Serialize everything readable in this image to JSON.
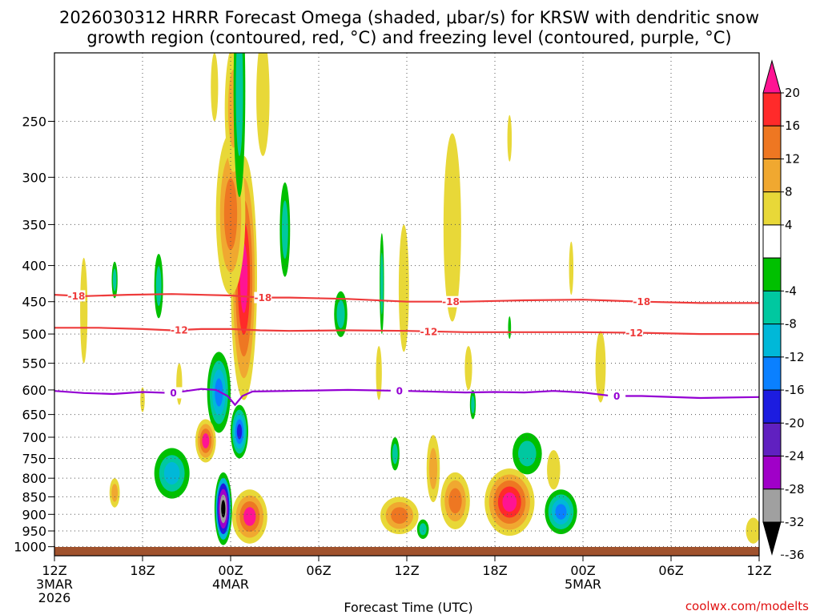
{
  "chart_data": {
    "type": "contour",
    "title_line1": "2026030312 HRRR Forecast Omega (shaded, μbar/s) for KRSW with dendritic snow",
    "title_line2": "growth region (contoured, red, °C) and freezing level (contoured, purple, °C)",
    "xlabel": "Forecast Time (UTC)",
    "credit": "coolwx.com/modelts",
    "x_range_hours": [
      0,
      48
    ],
    "x_ticks": [
      {
        "hour": 0,
        "lines": [
          "12Z",
          "3MAR",
          "2026"
        ]
      },
      {
        "hour": 6,
        "lines": [
          "18Z"
        ]
      },
      {
        "hour": 12,
        "lines": [
          "00Z",
          "4MAR"
        ]
      },
      {
        "hour": 18,
        "lines": [
          "06Z"
        ]
      },
      {
        "hour": 24,
        "lines": [
          "12Z"
        ]
      },
      {
        "hour": 30,
        "lines": [
          "18Z"
        ]
      },
      {
        "hour": 36,
        "lines": [
          "00Z",
          "5MAR"
        ]
      },
      {
        "hour": 42,
        "lines": [
          "06Z"
        ]
      },
      {
        "hour": 48,
        "lines": [
          "12Z"
        ]
      }
    ],
    "y_range_hPa": [
      1030,
      200
    ],
    "y_ticks": [
      "250",
      "300",
      "350",
      "400",
      "450",
      "500",
      "550",
      "600",
      "650",
      "700",
      "750",
      "800",
      "850",
      "900",
      "950",
      "1000"
    ],
    "colorbar": {
      "labels": [
        "20",
        "16",
        "12",
        "8",
        "4",
        "-4",
        "-8",
        "-12",
        "-16",
        "-20",
        "-24",
        "-28",
        "-32",
        "-36"
      ],
      "colors": [
        "#ff1493",
        "#ff2a2a",
        "#ee7722",
        "#f0a830",
        "#e8d838",
        "#ffffff",
        "#00c000",
        "#00c8a0",
        "#00b8d8",
        "#0a80ff",
        "#1c1ce0",
        "#6020c0",
        "#a000c8",
        "#a0a0a0",
        "#000000"
      ]
    },
    "isotherm_dgz_cold": {
      "label": "-18",
      "points": [
        [
          0,
          440
        ],
        [
          2,
          442
        ],
        [
          5,
          440
        ],
        [
          8,
          439
        ],
        [
          12,
          441
        ],
        [
          14,
          444
        ],
        [
          16,
          444
        ],
        [
          20,
          446
        ],
        [
          24,
          450
        ],
        [
          28,
          450
        ],
        [
          32,
          448
        ],
        [
          36,
          447
        ],
        [
          40,
          450
        ],
        [
          44,
          452
        ],
        [
          48,
          452
        ]
      ],
      "label_hours": [
        1.5,
        14.2,
        27,
        40
      ]
    },
    "isotherm_dgz_warm": {
      "label": "-12",
      "points": [
        [
          0,
          490
        ],
        [
          3,
          490
        ],
        [
          6,
          492
        ],
        [
          8,
          494
        ],
        [
          10,
          492
        ],
        [
          12,
          492
        ],
        [
          14,
          494
        ],
        [
          16,
          495
        ],
        [
          20,
          494
        ],
        [
          24,
          495
        ],
        [
          28,
          497
        ],
        [
          32,
          497
        ],
        [
          36,
          497
        ],
        [
          40,
          498
        ],
        [
          44,
          500
        ],
        [
          48,
          500
        ]
      ],
      "label_hours": [
        8.5,
        25.5,
        39.5
      ]
    },
    "isotherm_freezing": {
      "label": "0",
      "points": [
        [
          0,
          602
        ],
        [
          2,
          606
        ],
        [
          4,
          608
        ],
        [
          6,
          604
        ],
        [
          8,
          606
        ],
        [
          10,
          598
        ],
        [
          11,
          600
        ],
        [
          11.8,
          612
        ],
        [
          12.3,
          630
        ],
        [
          12.8,
          612
        ],
        [
          13.5,
          603
        ],
        [
          16,
          602
        ],
        [
          20,
          600
        ],
        [
          24,
          602
        ],
        [
          28,
          605
        ],
        [
          30,
          604
        ],
        [
          32,
          605
        ],
        [
          34,
          602
        ],
        [
          36,
          605
        ],
        [
          38,
          612
        ],
        [
          40,
          612
        ],
        [
          44,
          616
        ],
        [
          48,
          614
        ]
      ],
      "label_hours": [
        8.1,
        23.5,
        38.3
      ]
    },
    "omega_cells": [
      {
        "name": "omega-strong-rising-core",
        "t": 11.5,
        "p": 890,
        "rt": 0.6,
        "rp": 105,
        "values": [
          -4,
          -12,
          -20,
          -28,
          -32,
          -36
        ]
      },
      {
        "name": "omega-sinking-column",
        "t": 12.9,
        "p": 450,
        "rt": 0.9,
        "rp": 170,
        "values": [
          4,
          8,
          12,
          16,
          20
        ]
      },
      {
        "name": "omega-sinking-upper",
        "t": 12.0,
        "p": 350,
        "rt": 1.0,
        "rp": 90,
        "values": [
          4,
          8,
          12
        ]
      },
      {
        "name": "omega-sinking-upper-top",
        "t": 12.2,
        "p": 245,
        "rt": 0.6,
        "rp": 50,
        "values": [
          4,
          8
        ]
      },
      {
        "name": "omega-rising-mid-blue",
        "t": 12.6,
        "p": 690,
        "rt": 0.6,
        "rp": 60,
        "values": [
          -4,
          -8,
          -12,
          -16,
          -20
        ]
      },
      {
        "name": "omega-rising-midlevel",
        "t": 11.2,
        "p": 610,
        "rt": 0.8,
        "rp": 80,
        "values": [
          -4,
          -8,
          -12,
          -16
        ]
      },
      {
        "name": "omega-sinking-low-right",
        "t": 13.3,
        "p": 910,
        "rt": 1.2,
        "rp": 80,
        "values": [
          4,
          8,
          12,
          20
        ]
      },
      {
        "name": "omega-sinking-midlow",
        "t": 10.3,
        "p": 710,
        "rt": 0.7,
        "rp": 50,
        "values": [
          4,
          8,
          12,
          20
        ]
      },
      {
        "name": "omega-rising-left",
        "t": 8.0,
        "p": 790,
        "rt": 1.2,
        "rp": 65,
        "values": [
          -4,
          -8,
          -12
        ]
      },
      {
        "name": "omega-rising-upper-strip",
        "t": 12.6,
        "p": 240,
        "rt": 0.4,
        "rp": 80,
        "values": [
          -4,
          -8
        ]
      },
      {
        "name": "omega-rising-upper-right",
        "t": 15.7,
        "p": 360,
        "rt": 0.35,
        "rp": 55,
        "values": [
          -4,
          -8
        ]
      },
      {
        "name": "omega-rising-left-mid",
        "t": 7.1,
        "p": 430,
        "rt": 0.3,
        "rp": 45,
        "values": [
          -4,
          -8
        ]
      },
      {
        "name": "omega-rising-far-left",
        "t": 4.1,
        "p": 420,
        "rt": 0.2,
        "rp": 25,
        "values": [
          -4,
          -8
        ]
      },
      {
        "name": "omega-rising-mid-small",
        "t": 19.5,
        "p": 470,
        "rt": 0.45,
        "rp": 35,
        "values": [
          -4,
          -8
        ]
      },
      {
        "name": "omega-sinking-left-col",
        "t": 2.0,
        "p": 470,
        "rt": 0.25,
        "rp": 80,
        "values": [
          4
        ]
      },
      {
        "name": "omega-sinking-left-low",
        "t": 4.1,
        "p": 840,
        "rt": 0.35,
        "rp": 40,
        "values": [
          4,
          8
        ]
      },
      {
        "name": "omega-sinking-small-1",
        "t": 8.5,
        "p": 590,
        "rt": 0.2,
        "rp": 40,
        "values": [
          4
        ]
      },
      {
        "name": "omega-sinking-small-2",
        "t": 6.0,
        "p": 620,
        "rt": 0.15,
        "rp": 25,
        "values": [
          4
        ]
      },
      {
        "name": "omega-sinking-top-a",
        "t": 10.9,
        "p": 225,
        "rt": 0.25,
        "rp": 25,
        "values": [
          4
        ]
      },
      {
        "name": "omega-sinking-top-b",
        "t": 14.2,
        "p": 235,
        "rt": 0.45,
        "rp": 45,
        "values": [
          4
        ]
      },
      {
        "name": "omega-rising-thin-1",
        "t": 22.3,
        "p": 430,
        "rt": 0.15,
        "rp": 70,
        "values": [
          -4,
          -8
        ]
      },
      {
        "name": "omega-sinking-thin-1",
        "t": 22.1,
        "p": 570,
        "rt": 0.2,
        "rp": 50,
        "values": [
          4
        ]
      },
      {
        "name": "omega-sinking-mid-col",
        "t": 23.8,
        "p": 440,
        "rt": 0.35,
        "rp": 90,
        "values": [
          4
        ]
      },
      {
        "name": "omega-sinking-low-a",
        "t": 23.5,
        "p": 905,
        "rt": 1.3,
        "rp": 55,
        "values": [
          4,
          8,
          12
        ]
      },
      {
        "name": "omega-rising-low-a",
        "t": 23.2,
        "p": 740,
        "rt": 0.3,
        "rp": 40,
        "values": [
          -4,
          -8
        ]
      },
      {
        "name": "omega-rising-low-b",
        "t": 25.1,
        "p": 945,
        "rt": 0.4,
        "rp": 30,
        "values": [
          -4,
          -8
        ]
      },
      {
        "name": "omega-sinking-low-b",
        "t": 25.8,
        "p": 780,
        "rt": 0.45,
        "rp": 85,
        "values": [
          4,
          8
        ]
      },
      {
        "name": "omega-sinking-upper-col",
        "t": 27.1,
        "p": 370,
        "rt": 0.6,
        "rp": 110,
        "values": [
          4
        ]
      },
      {
        "name": "omega-sinking-low-c",
        "t": 27.3,
        "p": 865,
        "rt": 1.0,
        "rp": 80,
        "values": [
          4,
          8,
          12
        ]
      },
      {
        "name": "omega-rising-small-c",
        "t": 28.5,
        "p": 630,
        "rt": 0.2,
        "rp": 30,
        "values": [
          -4,
          -8
        ]
      },
      {
        "name": "omega-sinking-small-c",
        "t": 28.2,
        "p": 560,
        "rt": 0.25,
        "rp": 40,
        "values": [
          4
        ]
      },
      {
        "name": "omega-sinking-low-d",
        "t": 31.0,
        "p": 870,
        "rt": 1.7,
        "rp": 95,
        "values": [
          4,
          8,
          12,
          16,
          20
        ]
      },
      {
        "name": "omega-rising-low-d",
        "t": 32.2,
        "p": 740,
        "rt": 1.0,
        "rp": 50,
        "values": [
          -4,
          -8
        ]
      },
      {
        "name": "omega-sinking-top-c",
        "t": 31.0,
        "p": 265,
        "rt": 0.15,
        "rp": 20,
        "values": [
          4
        ]
      },
      {
        "name": "omega-rising-small-d",
        "t": 31.0,
        "p": 490,
        "rt": 0.1,
        "rp": 18,
        "values": [
          -4
        ]
      },
      {
        "name": "omega-sinking-mid-d",
        "t": 35.2,
        "p": 405,
        "rt": 0.15,
        "rp": 35,
        "values": [
          4
        ]
      },
      {
        "name": "omega-rising-low-e",
        "t": 34.5,
        "p": 895,
        "rt": 1.1,
        "rp": 65,
        "values": [
          -4,
          -8,
          -12,
          -16
        ]
      },
      {
        "name": "omega-sinking-low-e",
        "t": 34.0,
        "p": 780,
        "rt": 0.45,
        "rp": 50,
        "values": [
          4
        ]
      },
      {
        "name": "omega-sinking-mid-e",
        "t": 37.2,
        "p": 560,
        "rt": 0.35,
        "rp": 65,
        "values": [
          4
        ]
      },
      {
        "name": "omega-sinking-low-right-edge",
        "t": 47.6,
        "p": 950,
        "rt": 0.5,
        "rp": 40,
        "values": [
          4
        ]
      }
    ]
  }
}
